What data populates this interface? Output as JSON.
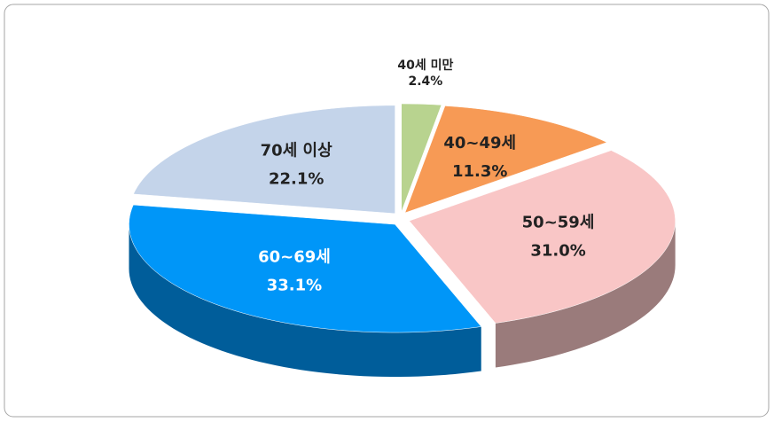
{
  "chart_data": {
    "type": "pie",
    "categories": [
      "40세 미만",
      "40~49세",
      "50~59세",
      "60~69세",
      "70세 이상"
    ],
    "values": [
      2.4,
      11.3,
      31.0,
      33.1,
      22.1
    ],
    "value_labels": [
      "2.4%",
      "11.3%",
      "31.0%",
      "33.1%",
      "22.1%"
    ],
    "colors": [
      "#b8d38f",
      "#f79a55",
      "#f9c6c6",
      "#0096f8",
      "#c4d4ea"
    ],
    "three_d": true,
    "exploded": true
  }
}
